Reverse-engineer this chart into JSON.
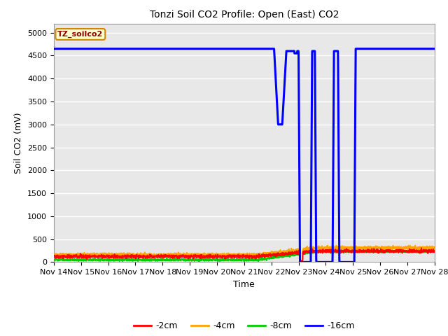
{
  "title": "Tonzi Soil CO2 Profile: Open (East) CO2",
  "xlabel": "Time",
  "ylabel": "Soil CO2 (mV)",
  "ylim": [
    0,
    5200
  ],
  "yticks": [
    0,
    500,
    1000,
    1500,
    2000,
    2500,
    3000,
    3500,
    4000,
    4500,
    5000
  ],
  "bg_color": "#e8e8e8",
  "fig_bg_color": "#ffffff",
  "legend_label": "TZ_soilco2",
  "line_colors": {
    "-2cm": "#ff0000",
    "-4cm": "#ffa500",
    "-8cm": "#00cc00",
    "-16cm": "#0000ff"
  },
  "x_tick_labels": [
    "Nov 14",
    "Nov 15",
    "Nov 16",
    "Nov 17",
    "Nov 18",
    "Nov 19",
    "Nov 20",
    "Nov 21",
    "Nov 22",
    "Nov 23",
    "Nov 24",
    "Nov 25",
    "Nov 26",
    "Nov 27",
    "Nov 28"
  ],
  "title_fontsize": 10,
  "axis_label_fontsize": 9,
  "tick_fontsize": 8
}
